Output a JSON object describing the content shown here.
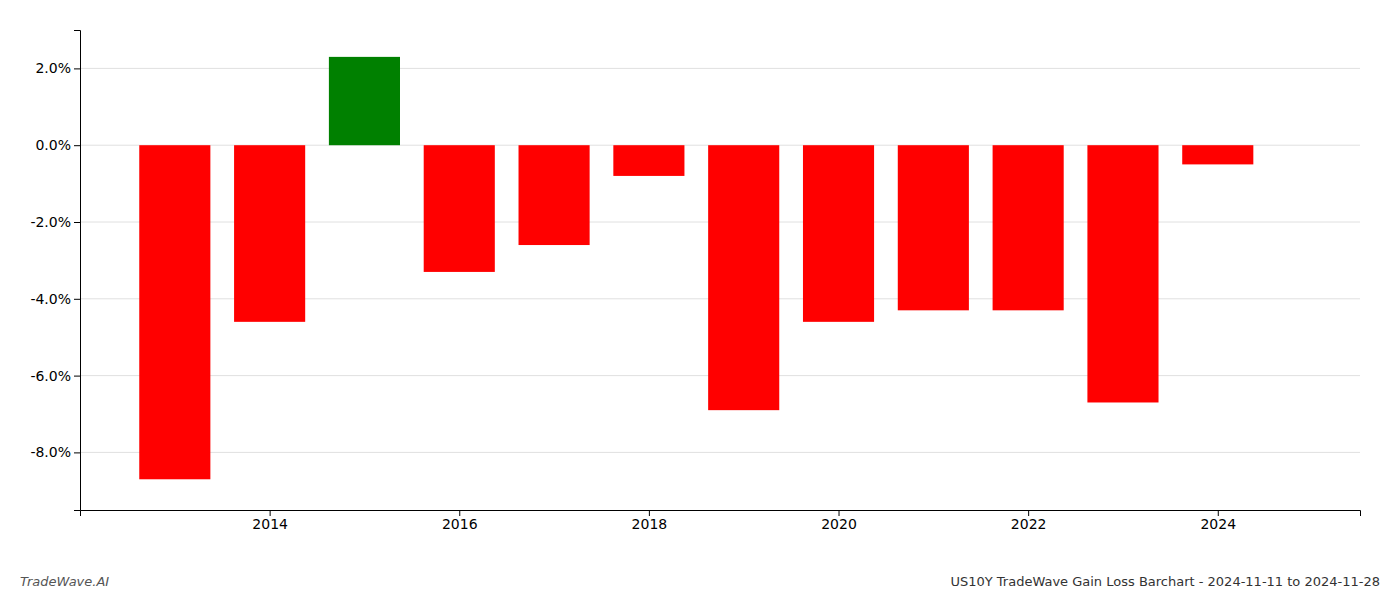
{
  "chart_data": {
    "type": "bar",
    "title": "US10Y TradeWave Gain Loss Barchart - 2024-11-11 to 2024-11-28",
    "annotations": [
      "TradeWave.AI"
    ],
    "x": [
      2013,
      2014,
      2015,
      2016,
      2017,
      2018,
      2019,
      2020,
      2021,
      2022,
      2023,
      2024
    ],
    "values": [
      -8.7,
      -4.6,
      2.3,
      -3.3,
      -2.6,
      -0.8,
      -6.9,
      -4.6,
      -4.3,
      -4.3,
      -6.7,
      -0.5
    ],
    "colors": [
      "#ff0000",
      "#ff0000",
      "#008000",
      "#ff0000",
      "#ff0000",
      "#ff0000",
      "#ff0000",
      "#ff0000",
      "#ff0000",
      "#ff0000",
      "#ff0000",
      "#ff0000"
    ],
    "xlim": [
      2012.0,
      2025.5
    ],
    "xticks": [
      2014,
      2016,
      2018,
      2020,
      2022,
      2024
    ],
    "ylim": [
      -9.5,
      3.0
    ],
    "yticks": [
      {
        "value": 2.0,
        "label": "2.0%"
      },
      {
        "value": 0.0,
        "label": "0.0%"
      },
      {
        "value": -2.0,
        "label": "-2.0%"
      },
      {
        "value": -4.0,
        "label": "-4.0%"
      },
      {
        "value": -6.0,
        "label": "-6.0%"
      },
      {
        "value": -8.0,
        "label": "-8.0%"
      }
    ],
    "grid": true
  }
}
